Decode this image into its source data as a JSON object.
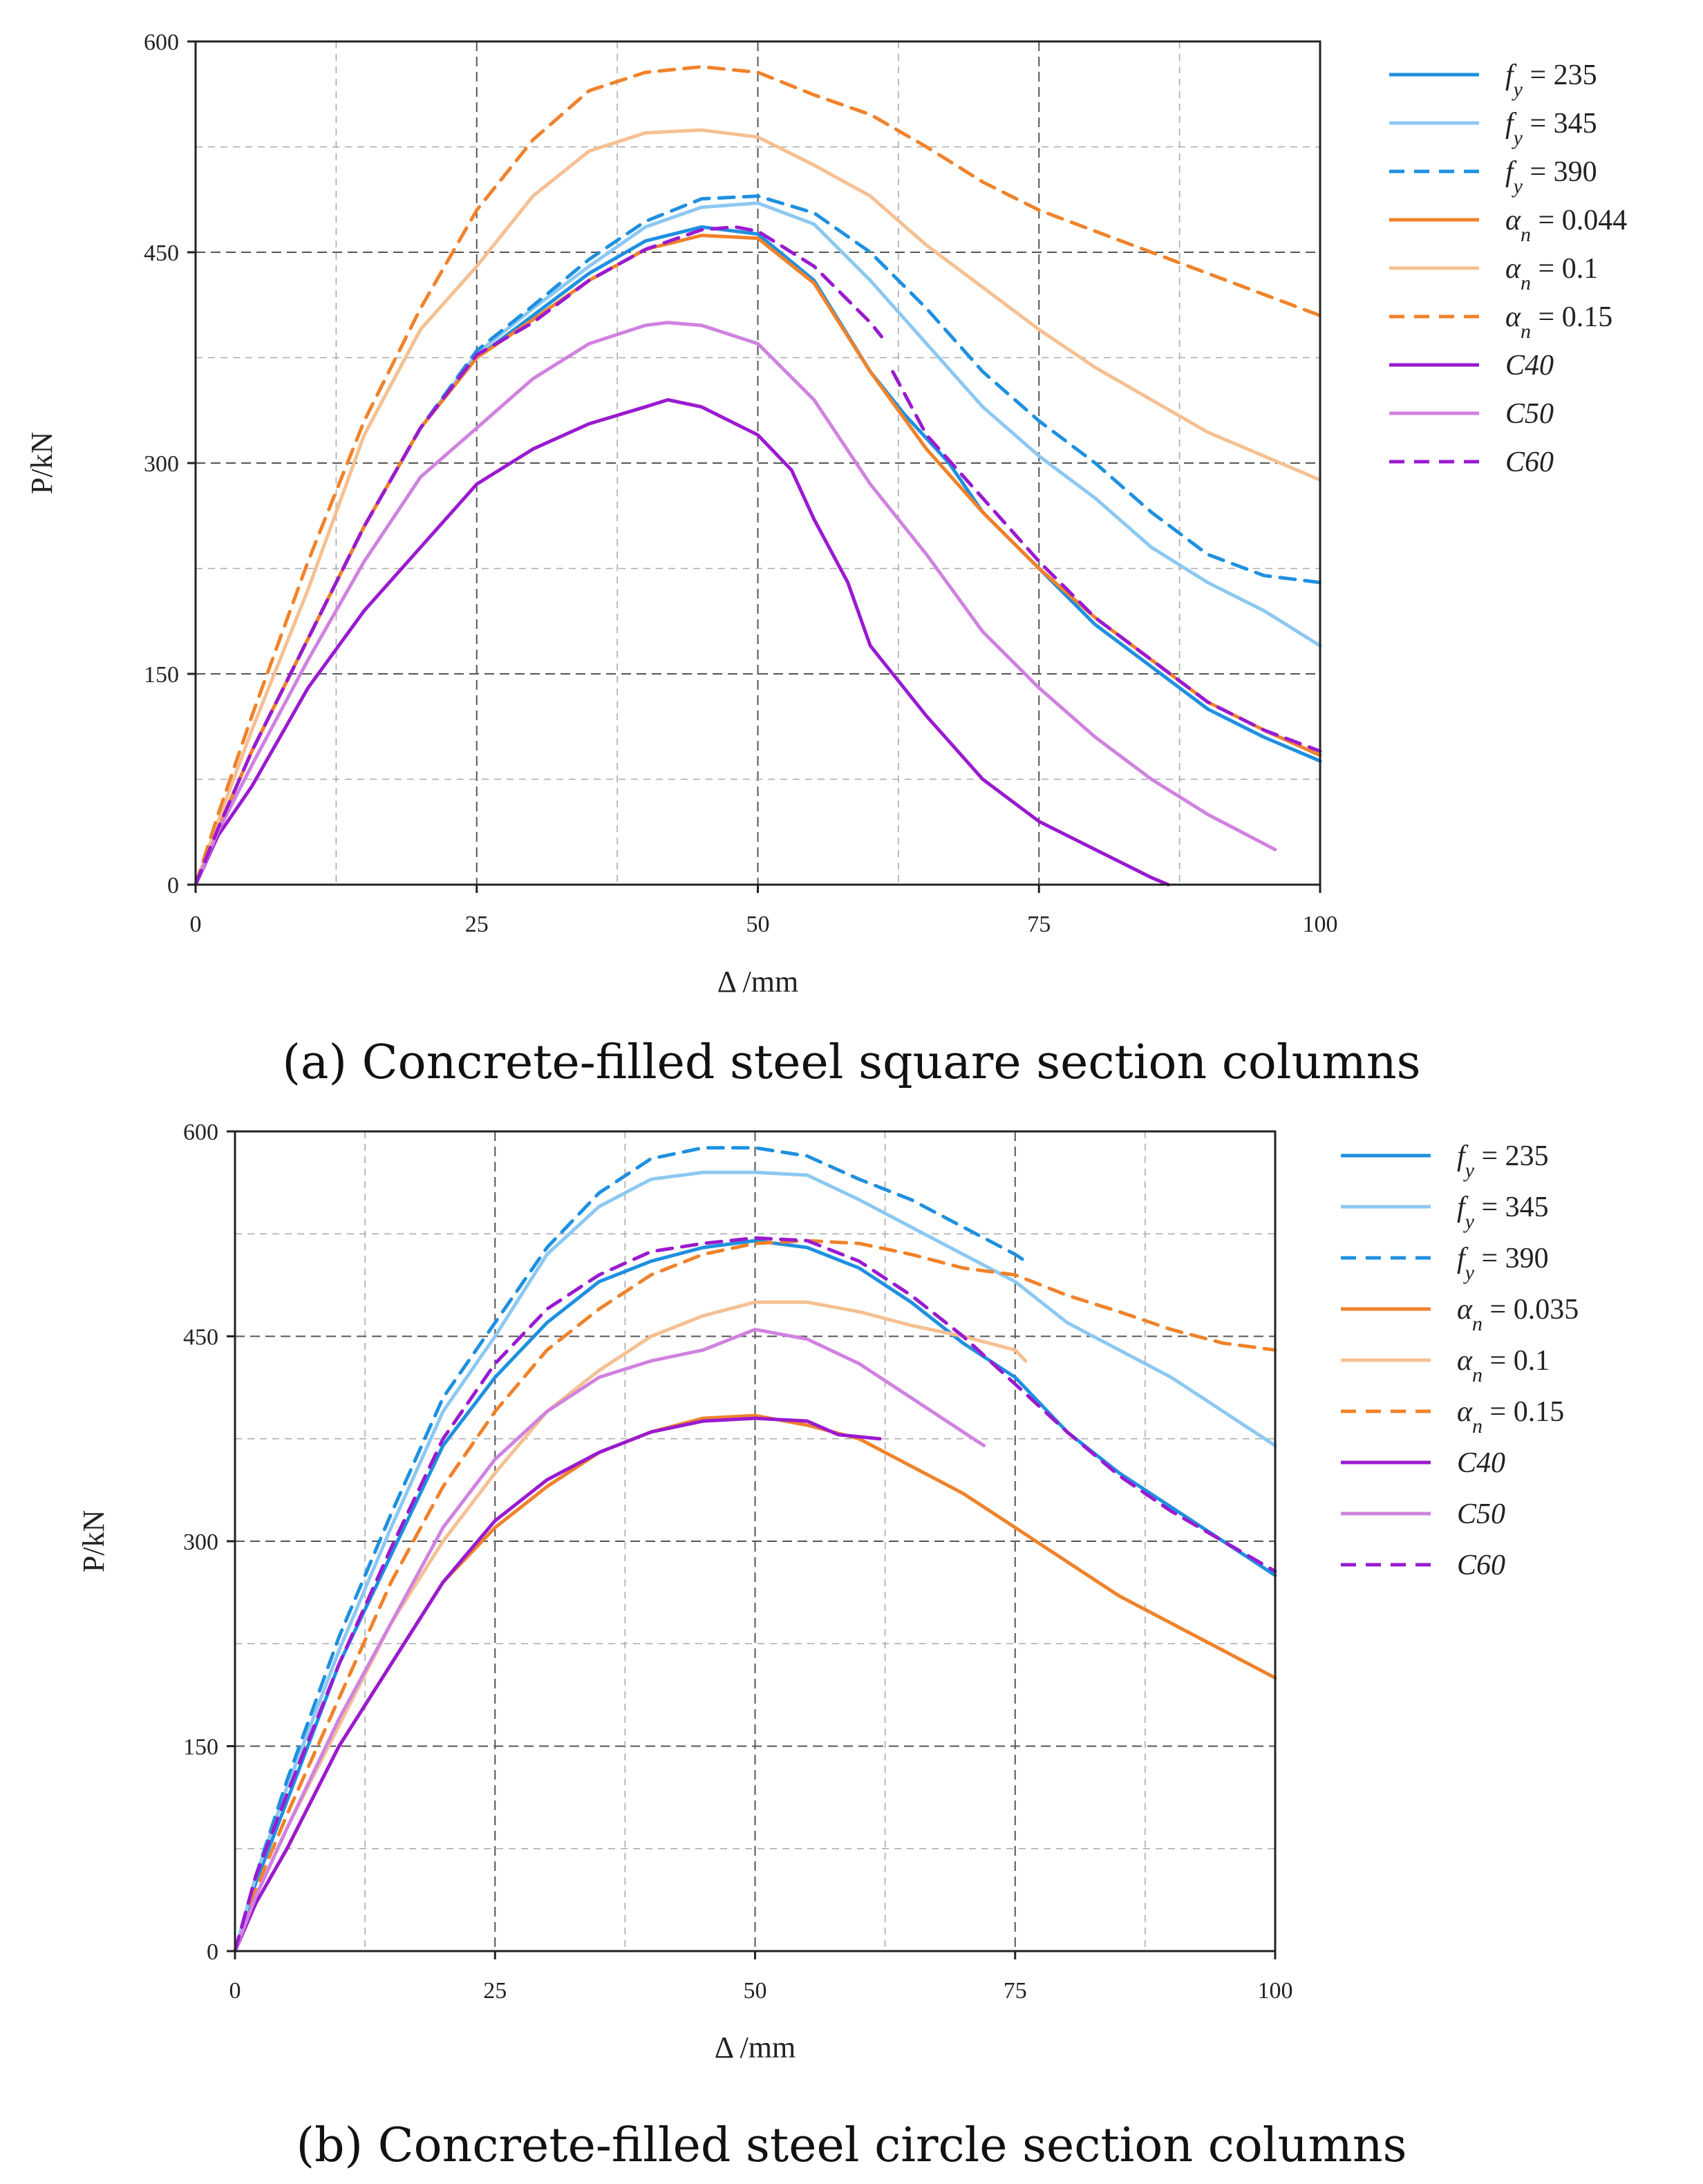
{
  "chart_data": [
    {
      "type": "line",
      "caption": "(a)  Concrete-filled steel square section columns",
      "xlabel": "Δ /mm",
      "ylabel": "P/kN",
      "xlim": [
        0,
        100
      ],
      "ylim": [
        0,
        600
      ],
      "xticks": [
        0,
        25,
        50,
        75,
        100
      ],
      "yticks": [
        0,
        150,
        300,
        450,
        600
      ],
      "grid": true,
      "legend_position": "right",
      "series": [
        {
          "name": "fy = 235",
          "label": "f_y = 235",
          "color": "#1e90e0",
          "dash": "solid",
          "x": [
            0,
            2,
            5,
            10,
            15,
            20,
            25,
            30,
            35,
            40,
            45,
            50,
            55,
            60,
            63,
            67,
            70,
            75,
            80,
            85,
            90,
            95,
            100
          ],
          "y": [
            0,
            40,
            95,
            175,
            255,
            325,
            375,
            405,
            435,
            458,
            468,
            463,
            430,
            365,
            335,
            300,
            265,
            225,
            185,
            155,
            125,
            105,
            88
          ]
        },
        {
          "name": "fy = 345",
          "label": "f_y = 345",
          "color": "#8cc8f2",
          "dash": "solid",
          "x": [
            0,
            2,
            5,
            10,
            15,
            20,
            25,
            30,
            35,
            40,
            45,
            50,
            55,
            60,
            65,
            70,
            75,
            80,
            85,
            90,
            95,
            100
          ],
          "y": [
            0,
            40,
            95,
            175,
            255,
            325,
            378,
            410,
            440,
            468,
            482,
            485,
            470,
            430,
            385,
            340,
            305,
            275,
            240,
            215,
            195,
            170
          ]
        },
        {
          "name": "fy = 390",
          "label": "f_y = 390",
          "color": "#1e90e0",
          "dash": "dashed",
          "x": [
            0,
            2,
            5,
            10,
            15,
            20,
            25,
            30,
            35,
            40,
            45,
            50,
            55,
            60,
            65,
            70,
            75,
            80,
            85,
            90,
            95,
            100
          ],
          "y": [
            0,
            40,
            95,
            175,
            255,
            325,
            380,
            412,
            445,
            472,
            488,
            490,
            478,
            450,
            410,
            365,
            330,
            300,
            265,
            235,
            220,
            215
          ]
        },
        {
          "name": "αn = 0.044",
          "label": "α_n = 0.044",
          "color": "#f0822a",
          "dash": "solid",
          "x": [
            0,
            2,
            5,
            10,
            15,
            20,
            25,
            30,
            35,
            40,
            45,
            50,
            55,
            60,
            65,
            70,
            75,
            80,
            85,
            90,
            95,
            100
          ],
          "y": [
            0,
            40,
            95,
            175,
            255,
            325,
            375,
            402,
            430,
            452,
            462,
            460,
            428,
            365,
            310,
            265,
            225,
            190,
            160,
            130,
            110,
            92
          ]
        },
        {
          "name": "αn = 0.1",
          "label": "α_n = 0.1",
          "color": "#f5c092",
          "dash": "solid",
          "x": [
            0,
            2,
            5,
            10,
            15,
            20,
            25,
            30,
            35,
            40,
            45,
            50,
            55,
            60,
            65,
            70,
            75,
            80,
            85,
            90,
            95,
            100
          ],
          "y": [
            0,
            45,
            110,
            210,
            320,
            395,
            440,
            490,
            522,
            535,
            537,
            532,
            512,
            490,
            455,
            425,
            395,
            368,
            345,
            322,
            305,
            288
          ]
        },
        {
          "name": "αn = 0.15",
          "label": "α_n = 0.15",
          "color": "#f0822a",
          "dash": "dashed",
          "x": [
            0,
            2,
            5,
            10,
            15,
            20,
            25,
            30,
            35,
            40,
            45,
            50,
            55,
            60,
            65,
            70,
            75,
            80,
            85,
            90,
            95,
            100
          ],
          "y": [
            0,
            50,
            120,
            230,
            330,
            410,
            480,
            530,
            565,
            578,
            582,
            578,
            562,
            548,
            525,
            500,
            480,
            465,
            450,
            435,
            420,
            405
          ]
        },
        {
          "name": "C40",
          "label": "C40",
          "color": "#9a1ad0",
          "dash": "solid",
          "x": [
            0,
            2,
            5,
            10,
            15,
            20,
            25,
            30,
            35,
            40,
            42,
            45,
            50,
            53,
            55,
            58,
            60,
            62,
            65,
            70,
            75,
            80,
            85,
            86.5
          ],
          "y": [
            0,
            35,
            70,
            140,
            195,
            240,
            285,
            310,
            328,
            340,
            345,
            340,
            320,
            295,
            260,
            215,
            170,
            150,
            120,
            75,
            45,
            25,
            5,
            0
          ]
        },
        {
          "name": "C50",
          "label": "C50",
          "color": "#d082e0",
          "dash": "solid",
          "x": [
            0,
            2,
            5,
            10,
            15,
            20,
            25,
            30,
            35,
            40,
            42,
            45,
            50,
            55,
            60,
            65,
            70,
            75,
            80,
            85,
            90,
            96
          ],
          "y": [
            0,
            38,
            85,
            160,
            230,
            290,
            325,
            360,
            385,
            398,
            400,
            398,
            385,
            345,
            285,
            235,
            180,
            140,
            105,
            75,
            50,
            25
          ]
        },
        {
          "name": "C60",
          "label": "C60",
          "color": "#9a1ad0",
          "dash": "dashed",
          "x": [
            0,
            2,
            5,
            10,
            15,
            20,
            25,
            30,
            35,
            40,
            45,
            48,
            50,
            55,
            60,
            61
          ],
          "y": [
            0,
            40,
            95,
            175,
            255,
            325,
            377,
            400,
            430,
            452,
            466,
            468,
            465,
            440,
            400,
            390
          ]
        },
        {
          "name": "C60-b",
          "label": "",
          "color": "#9a1ad0",
          "dash": "dashed",
          "x": [
            62,
            65,
            70,
            75,
            80,
            85,
            90,
            95,
            100
          ],
          "y": [
            365,
            320,
            275,
            230,
            190,
            160,
            130,
            110,
            95
          ]
        }
      ]
    },
    {
      "type": "line",
      "caption": "(b)  Concrete-filled steel circle section columns",
      "xlabel": "Δ /mm",
      "ylabel": "P/kN",
      "xlim": [
        0,
        100
      ],
      "ylim": [
        0,
        600
      ],
      "xticks": [
        0,
        25,
        50,
        75,
        100
      ],
      "yticks": [
        0,
        150,
        300,
        450,
        600
      ],
      "grid": true,
      "legend_position": "right",
      "series": [
        {
          "name": "fy = 235",
          "label": "f_y = 235",
          "color": "#1e90e0",
          "dash": "solid",
          "x": [
            0,
            2,
            5,
            10,
            15,
            20,
            25,
            30,
            35,
            40,
            45,
            50,
            55,
            60,
            65,
            70,
            75,
            80,
            85,
            90,
            95,
            100
          ],
          "y": [
            0,
            50,
            110,
            210,
            290,
            370,
            420,
            460,
            490,
            505,
            515,
            520,
            515,
            500,
            475,
            445,
            420,
            380,
            350,
            325,
            300,
            275
          ]
        },
        {
          "name": "fy = 345",
          "label": "f_y = 345",
          "color": "#8cc8f2",
          "dash": "solid",
          "x": [
            0,
            2,
            5,
            10,
            15,
            20,
            25,
            30,
            35,
            40,
            45,
            50,
            55,
            60,
            65,
            70,
            75,
            80,
            85,
            90,
            95,
            100
          ],
          "y": [
            0,
            55,
            120,
            220,
            310,
            395,
            450,
            510,
            545,
            565,
            570,
            570,
            568,
            550,
            530,
            510,
            490,
            460,
            440,
            420,
            395,
            370
          ]
        },
        {
          "name": "fy = 390",
          "label": "f_y = 390",
          "color": "#1e90e0",
          "dash": "dashed",
          "x": [
            0,
            2,
            5,
            10,
            15,
            20,
            25,
            30,
            35,
            40,
            45,
            50,
            55,
            60,
            65,
            70,
            75,
            76
          ],
          "y": [
            0,
            55,
            125,
            230,
            320,
            405,
            460,
            515,
            555,
            580,
            588,
            588,
            582,
            565,
            550,
            530,
            510,
            505
          ]
        },
        {
          "name": "αn = 0.035",
          "label": "α_n = 0.035",
          "color": "#f0822a",
          "dash": "solid",
          "x": [
            0,
            2,
            5,
            10,
            15,
            20,
            25,
            30,
            35,
            40,
            45,
            50,
            55,
            60,
            65,
            70,
            75,
            80,
            85,
            90,
            95,
            100
          ],
          "y": [
            0,
            35,
            75,
            150,
            210,
            270,
            310,
            340,
            365,
            380,
            390,
            392,
            385,
            375,
            355,
            335,
            310,
            285,
            260,
            240,
            220,
            200
          ]
        },
        {
          "name": "αn = 0.1",
          "label": "α_n = 0.1",
          "color": "#f5c092",
          "dash": "solid",
          "x": [
            0,
            2,
            5,
            10,
            15,
            20,
            25,
            30,
            35,
            40,
            45,
            50,
            55,
            60,
            65,
            70,
            75,
            76
          ],
          "y": [
            0,
            40,
            90,
            165,
            240,
            300,
            350,
            395,
            425,
            450,
            465,
            475,
            475,
            468,
            458,
            450,
            440,
            432
          ]
        },
        {
          "name": "αn = 0.15",
          "label": "α_n = 0.15",
          "color": "#f0822a",
          "dash": "dashed",
          "x": [
            0,
            2,
            5,
            10,
            15,
            20,
            25,
            30,
            35,
            40,
            45,
            50,
            55,
            60,
            65,
            70,
            75,
            80,
            85,
            90,
            95,
            100
          ],
          "y": [
            0,
            45,
            100,
            185,
            270,
            340,
            395,
            440,
            470,
            495,
            510,
            518,
            520,
            518,
            510,
            500,
            495,
            480,
            468,
            455,
            445,
            440
          ]
        },
        {
          "name": "C40",
          "label": "C40",
          "color": "#9a1ad0",
          "dash": "solid",
          "x": [
            0,
            2,
            5,
            10,
            15,
            20,
            25,
            30,
            35,
            40,
            45,
            50,
            55,
            58,
            62
          ],
          "y": [
            0,
            35,
            75,
            150,
            210,
            270,
            315,
            345,
            365,
            380,
            388,
            390,
            388,
            378,
            375
          ]
        },
        {
          "name": "C50",
          "label": "C50",
          "color": "#d082e0",
          "dash": "solid",
          "x": [
            0,
            2,
            5,
            10,
            15,
            20,
            25,
            30,
            35,
            40,
            45,
            50,
            55,
            60,
            65,
            70,
            72
          ],
          "y": [
            0,
            40,
            90,
            170,
            240,
            310,
            360,
            395,
            420,
            432,
            440,
            455,
            448,
            430,
            405,
            380,
            370
          ]
        },
        {
          "name": "C60",
          "label": "C60",
          "color": "#9a1ad0",
          "dash": "dashed",
          "x": [
            0,
            2,
            5,
            10,
            15,
            20,
            25,
            30,
            35,
            40,
            45,
            50,
            55,
            60,
            65,
            70,
            75,
            80,
            85,
            90,
            95,
            100
          ],
          "y": [
            0,
            55,
            115,
            210,
            295,
            375,
            430,
            470,
            495,
            512,
            518,
            522,
            520,
            505,
            480,
            450,
            415,
            380,
            348,
            322,
            300,
            278
          ]
        }
      ]
    }
  ]
}
